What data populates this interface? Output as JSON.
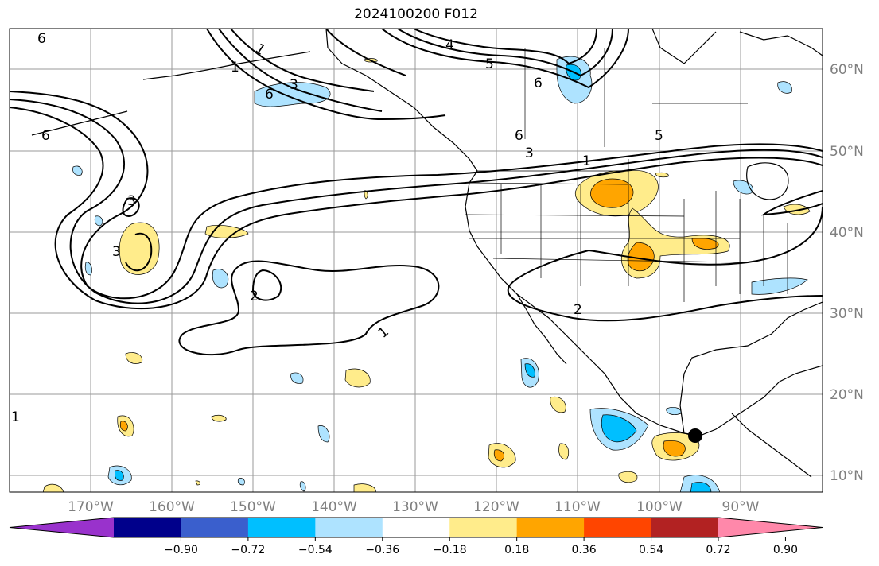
{
  "title": "2024100200 F012",
  "lon_labels": [
    "170°W",
    "160°W",
    "150°W",
    "140°W",
    "130°W",
    "120°W",
    "110°W",
    "100°W",
    "90°W"
  ],
  "lat_labels": [
    "60°N",
    "50°N",
    "40°N",
    "30°N",
    "20°N",
    "10°N"
  ],
  "colorbar": {
    "ticks": [
      "−0.90",
      "−0.72",
      "−0.54",
      "−0.36",
      "−0.18",
      "0.18",
      "0.36",
      "0.54",
      "0.72",
      "0.90"
    ],
    "colors": [
      "#9932cc",
      "#00008b",
      "#3a5fcd",
      "#00bfff",
      "#aee3ff",
      "#ffffff",
      "#ffec8b",
      "#ffa500",
      "#ff4500",
      "#b22222",
      "#ff88aa"
    ]
  },
  "contour_labels": [
    "6",
    "1",
    "4",
    "5",
    "6",
    "3",
    "6",
    "1",
    "5",
    "6",
    "3",
    "6",
    "1",
    "3",
    "3",
    "2",
    "1",
    "2",
    "1"
  ],
  "marker": "storm-position-dot"
}
